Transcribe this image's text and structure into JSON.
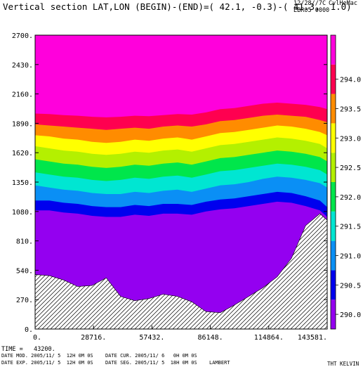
{
  "header": {
    "title": "Vertical section LAT,LON (BEGIN)-(END)=( 42.1, -0.3)-( 41.3,  1.0)",
    "date_stamp": "12/28//7C",
    "user_stamp": "CvlHeMac",
    "run_stamp": "EBR05 0000"
  },
  "footer": {
    "time_label": "TIME =   43200.",
    "date_mod": "DATE MOD. 2005/11/ 5  12H 0M 0S",
    "date_cur": "DATE CUR. 2005/11/ 6   0H 0M 0S",
    "date_exp": "DATE EXP. 2005/11/ 5  12H 0M 0S",
    "date_seg": "DATE SEG. 2005/11/ 5  18H 0M 0S",
    "projection": "LAMBERT",
    "variable": "THT KELVIN"
  },
  "chart_data": {
    "type": "area",
    "x_ticks": [
      0,
      28716,
      57432,
      86148,
      114864,
      143581
    ],
    "x_tick_labels": [
      "0.",
      "28716.",
      "57432.",
      "86148.",
      "114864.",
      "143581."
    ],
    "xlim": [
      0,
      143581
    ],
    "y_ticks": [
      0,
      270,
      540,
      810,
      1080,
      1350,
      1620,
      1890,
      2160,
      2430,
      2700
    ],
    "y_tick_labels": [
      "0.",
      "270.",
      "540.",
      "810.",
      "1080.",
      "1350.",
      "1620.",
      "1890.",
      "2160.",
      "2430.",
      "2700."
    ],
    "ylim": [
      0,
      2700
    ],
    "x": [
      0,
      7000,
      14000,
      21000,
      28000,
      35000,
      42000,
      49000,
      56000,
      63000,
      70000,
      77000,
      84000,
      91000,
      98000,
      105000,
      112000,
      119000,
      126000,
      133000,
      140000,
      143581
    ],
    "terrain": [
      500,
      490,
      450,
      390,
      400,
      470,
      300,
      260,
      280,
      320,
      300,
      250,
      160,
      150,
      220,
      300,
      380,
      480,
      650,
      950,
      1060,
      1000
    ],
    "levels": [
      {
        "name": "290.5",
        "color": "#0000ee",
        "top": [
          1180,
          1180,
          1160,
          1150,
          1130,
          1120,
          1120,
          1140,
          1130,
          1150,
          1150,
          1140,
          1170,
          1190,
          1200,
          1220,
          1240,
          1260,
          1250,
          1220,
          1180,
          1120
        ]
      },
      {
        "name": "291.0",
        "color": "#0a8ff5",
        "top": [
          1320,
          1300,
          1280,
          1270,
          1250,
          1240,
          1240,
          1260,
          1250,
          1270,
          1280,
          1260,
          1290,
          1320,
          1330,
          1350,
          1380,
          1400,
          1390,
          1370,
          1340,
          1300
        ]
      },
      {
        "name": "291.5",
        "color": "#00e6d2",
        "top": [
          1440,
          1420,
          1400,
          1390,
          1370,
          1360,
          1370,
          1390,
          1380,
          1400,
          1410,
          1390,
          1420,
          1450,
          1460,
          1480,
          1500,
          1520,
          1510,
          1490,
          1460,
          1420
        ]
      },
      {
        "name": "292.0",
        "color": "#00e64b",
        "top": [
          1560,
          1540,
          1520,
          1510,
          1490,
          1480,
          1490,
          1510,
          1500,
          1520,
          1530,
          1510,
          1540,
          1570,
          1580,
          1600,
          1620,
          1640,
          1630,
          1610,
          1580,
          1540
        ]
      },
      {
        "name": "292.5",
        "color": "#b4f000",
        "top": [
          1680,
          1660,
          1640,
          1630,
          1610,
          1600,
          1610,
          1630,
          1620,
          1640,
          1650,
          1630,
          1660,
          1690,
          1700,
          1720,
          1740,
          1760,
          1750,
          1730,
          1700,
          1660
        ]
      },
      {
        "name": "293.0",
        "color": "#ffff00",
        "top": [
          1780,
          1770,
          1750,
          1740,
          1720,
          1710,
          1720,
          1740,
          1730,
          1750,
          1760,
          1740,
          1770,
          1800,
          1810,
          1830,
          1850,
          1870,
          1860,
          1840,
          1810,
          1780
        ]
      },
      {
        "name": "293.5",
        "color": "#ff8c00",
        "top": [
          1880,
          1870,
          1860,
          1850,
          1840,
          1830,
          1840,
          1850,
          1840,
          1860,
          1870,
          1860,
          1880,
          1910,
          1920,
          1940,
          1960,
          1970,
          1960,
          1950,
          1920,
          1900
        ]
      },
      {
        "name": "294.0",
        "color": "#ff0050",
        "top": [
          1980,
          1975,
          1965,
          1960,
          1950,
          1945,
          1950,
          1960,
          1955,
          1965,
          1975,
          1970,
          1990,
          2020,
          2030,
          2050,
          2070,
          2080,
          2070,
          2060,
          2040,
          2020
        ]
      }
    ],
    "base_fill": "#9400f0",
    "top_fill": "#ff00dc",
    "colorbar": [
      {
        "value": 290.0,
        "label": "290.0"
      },
      {
        "value": 290.5,
        "label": "290.5"
      },
      {
        "value": 291.0,
        "label": "291.0"
      },
      {
        "value": 291.5,
        "label": "291.5"
      },
      {
        "value": 292.0,
        "label": "292.0"
      },
      {
        "value": 292.5,
        "label": "292.5"
      },
      {
        "value": 293.0,
        "label": "293.0"
      },
      {
        "value": 293.5,
        "label": "293.5"
      },
      {
        "value": 294.0,
        "label": "294.0"
      }
    ],
    "colorbar_colors": [
      "#9400f0",
      "#0000ee",
      "#0a8ff5",
      "#00e6d2",
      "#00e64b",
      "#b4f000",
      "#ffff00",
      "#ff8c00",
      "#ff0050",
      "#ff00dc"
    ],
    "colorbar_range": [
      289.75,
      294.75
    ]
  }
}
